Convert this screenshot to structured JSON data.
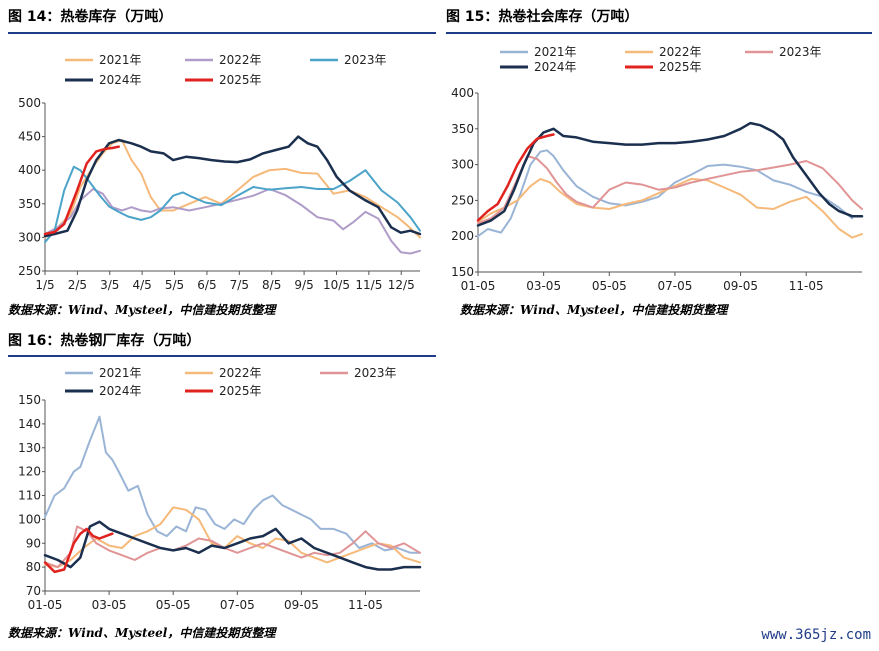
{
  "charts": [
    {
      "title": "图 14：热卷库存（万吨）",
      "source": "数据来源：Wind、Mysteel，中信建投期货整理",
      "legend": [
        "2021年",
        "2022年",
        "2023年",
        "2024年",
        "2025年"
      ]
    },
    {
      "title": "图 15：热卷社会库存（万吨）",
      "source": "数据来源：Wind、Mysteel，中信建投期货整理",
      "legend": [
        "2021年",
        "2022年",
        "2023年",
        "2024年",
        "2025年"
      ]
    },
    {
      "title": "图 16：热卷钢厂库存（万吨）",
      "source": "数据来源：Wind、Mysteel，中信建投期货整理",
      "legend": [
        "2021年",
        "2022年",
        "2023年",
        "2024年",
        "2025年"
      ]
    }
  ],
  "watermark": "www.365jz.com",
  "chart_data": [
    {
      "type": "line",
      "title": "图 14：热卷库存（万吨）",
      "x_ticks": [
        "1/5",
        "2/5",
        "3/5",
        "4/5",
        "5/5",
        "6/5",
        "7/5",
        "8/5",
        "9/5",
        "10/5",
        "11/5",
        "12/5"
      ],
      "xlim": [
        0,
        11.7
      ],
      "ylim": [
        250,
        500
      ],
      "y_ticks": [
        250,
        300,
        350,
        400,
        450,
        500
      ],
      "legend_position": "top",
      "series": [
        {
          "name": "2021年",
          "color": "#f5b97a",
          "width": 2,
          "x": [
            0,
            0.4,
            0.8,
            1.1,
            1.5,
            1.8,
            2.1,
            2.4,
            2.7,
            3.0,
            3.3,
            3.6,
            4.0,
            4.5,
            5.0,
            5.5,
            6.0,
            6.5,
            7.0,
            7.5,
            8.0,
            8.5,
            9.0,
            9.5,
            10.0,
            10.5,
            11.0,
            11.3,
            11.7
          ],
          "y": [
            300,
            315,
            335,
            375,
            405,
            425,
            440,
            445,
            415,
            395,
            360,
            340,
            340,
            350,
            360,
            350,
            370,
            390,
            400,
            402,
            396,
            395,
            365,
            370,
            360,
            345,
            330,
            318,
            300
          ]
        },
        {
          "name": "2022年",
          "color": "#b09cc8",
          "width": 2,
          "x": [
            0,
            0.4,
            0.8,
            1.1,
            1.5,
            1.8,
            2.1,
            2.4,
            2.7,
            3.0,
            3.3,
            3.6,
            4.0,
            4.5,
            5.0,
            5.5,
            6.0,
            6.5,
            7.0,
            7.5,
            8.0,
            8.5,
            9.0,
            9.3,
            9.6,
            10.0,
            10.4,
            10.8,
            11.1,
            11.4,
            11.7
          ],
          "y": [
            305,
            315,
            330,
            355,
            372,
            365,
            345,
            340,
            345,
            340,
            338,
            343,
            345,
            340,
            345,
            350,
            356,
            362,
            372,
            363,
            348,
            330,
            325,
            312,
            322,
            338,
            328,
            295,
            278,
            276,
            280
          ]
        },
        {
          "name": "2023年",
          "color": "#4ba3c9",
          "width": 2,
          "x": [
            0,
            0.3,
            0.6,
            0.9,
            1.1,
            1.4,
            1.7,
            2.0,
            2.3,
            2.6,
            3.0,
            3.3,
            3.6,
            4.0,
            4.3,
            4.6,
            5.0,
            5.5,
            6.0,
            6.5,
            7.0,
            7.5,
            8.0,
            8.5,
            9.0,
            9.5,
            10.0,
            10.5,
            11.0,
            11.4,
            11.7
          ],
          "y": [
            293,
            310,
            370,
            405,
            400,
            382,
            363,
            346,
            338,
            331,
            326,
            330,
            340,
            362,
            367,
            360,
            352,
            348,
            362,
            375,
            371,
            373,
            375,
            372,
            372,
            384,
            400,
            370,
            352,
            330,
            310
          ]
        },
        {
          "name": "2024年",
          "color": "#1b2f4e",
          "width": 2.5,
          "x": [
            0,
            0.3,
            0.7,
            1.0,
            1.3,
            1.6,
            2.0,
            2.3,
            2.7,
            3.0,
            3.3,
            3.7,
            4.0,
            4.4,
            4.8,
            5.2,
            5.6,
            6.0,
            6.4,
            6.8,
            7.2,
            7.6,
            7.9,
            8.2,
            8.5,
            8.8,
            9.1,
            9.5,
            10.0,
            10.4,
            10.8,
            11.1,
            11.4,
            11.7
          ],
          "y": [
            302,
            305,
            310,
            340,
            385,
            415,
            440,
            445,
            440,
            435,
            428,
            425,
            415,
            420,
            418,
            415,
            413,
            412,
            416,
            425,
            430,
            435,
            450,
            440,
            435,
            415,
            390,
            370,
            355,
            345,
            315,
            307,
            310,
            305
          ]
        },
        {
          "name": "2025年",
          "color": "#e1231f",
          "width": 2.5,
          "x": [
            0,
            0.3,
            0.6,
            1.0,
            1.3,
            1.6,
            1.9,
            2.1,
            2.3
          ],
          "y": [
            305,
            308,
            320,
            370,
            410,
            428,
            432,
            433,
            435
          ]
        }
      ]
    },
    {
      "type": "line",
      "title": "图 15：热卷社会库存（万吨）",
      "x_ticks": [
        "01-05",
        "03-05",
        "05-05",
        "07-05",
        "09-05",
        "11-05"
      ],
      "xlim": [
        0,
        11.7
      ],
      "ylim": [
        150,
        400
      ],
      "y_ticks": [
        150,
        200,
        250,
        300,
        350,
        400
      ],
      "legend_position": "top",
      "series": [
        {
          "name": "2021年",
          "color": "#9ab4d6",
          "width": 2,
          "x": [
            0,
            0.3,
            0.7,
            1.0,
            1.3,
            1.6,
            1.9,
            2.1,
            2.3,
            2.6,
            3.0,
            3.5,
            4.0,
            4.5,
            5.0,
            5.5,
            6.0,
            6.5,
            7.0,
            7.5,
            8.0,
            8.5,
            9.0,
            9.5,
            10.0,
            10.5,
            11.0,
            11.4
          ],
          "y": [
            200,
            210,
            205,
            225,
            260,
            300,
            318,
            320,
            312,
            292,
            270,
            255,
            246,
            243,
            248,
            255,
            275,
            286,
            298,
            300,
            297,
            292,
            278,
            272,
            262,
            255,
            240,
            225
          ]
        },
        {
          "name": "2022年",
          "color": "#f5b97a",
          "width": 2,
          "x": [
            0,
            0.4,
            0.8,
            1.2,
            1.6,
            1.9,
            2.2,
            2.5,
            3.0,
            3.5,
            4.0,
            4.5,
            5.0,
            5.5,
            6.0,
            6.5,
            7.0,
            7.5,
            8.0,
            8.5,
            9.0,
            9.5,
            10.0,
            10.5,
            11.0,
            11.4,
            11.7
          ],
          "y": [
            220,
            232,
            240,
            250,
            270,
            280,
            275,
            262,
            245,
            240,
            238,
            245,
            250,
            260,
            270,
            280,
            278,
            268,
            258,
            240,
            238,
            248,
            255,
            235,
            210,
            198,
            203
          ]
        },
        {
          "name": "2023年",
          "color": "#e09495",
          "width": 2,
          "x": [
            0,
            0.4,
            0.8,
            1.2,
            1.5,
            1.8,
            2.1,
            2.4,
            2.7,
            3.0,
            3.5,
            4.0,
            4.5,
            5.0,
            5.5,
            6.0,
            6.5,
            7.0,
            7.5,
            8.0,
            8.5,
            9.0,
            9.5,
            10.0,
            10.5,
            11.0,
            11.4,
            11.7
          ],
          "y": [
            218,
            225,
            240,
            280,
            312,
            308,
            295,
            275,
            258,
            248,
            240,
            265,
            275,
            272,
            265,
            268,
            275,
            280,
            285,
            290,
            292,
            296,
            300,
            305,
            295,
            272,
            250,
            238
          ]
        },
        {
          "name": "2024年",
          "color": "#1b2f4e",
          "width": 2.5,
          "x": [
            0,
            0.4,
            0.8,
            1.1,
            1.4,
            1.7,
            2.0,
            2.3,
            2.6,
            3.0,
            3.5,
            4.0,
            4.5,
            5.0,
            5.5,
            6.0,
            6.5,
            7.0,
            7.5,
            8.0,
            8.3,
            8.6,
            9.0,
            9.3,
            9.6,
            10.0,
            10.4,
            10.7,
            11.0,
            11.4,
            11.7
          ],
          "y": [
            215,
            222,
            235,
            265,
            300,
            330,
            345,
            350,
            340,
            338,
            332,
            330,
            328,
            328,
            330,
            330,
            332,
            335,
            340,
            350,
            358,
            355,
            346,
            335,
            310,
            285,
            260,
            245,
            235,
            228,
            228
          ]
        },
        {
          "name": "2025年",
          "color": "#e1231f",
          "width": 2.5,
          "x": [
            0,
            0.3,
            0.6,
            0.9,
            1.2,
            1.5,
            1.8,
            2.1,
            2.3
          ],
          "y": [
            222,
            235,
            245,
            270,
            300,
            322,
            336,
            340,
            342
          ]
        }
      ]
    },
    {
      "type": "line",
      "title": "图 16：热卷钢厂库存（万吨）",
      "x_ticks": [
        "01-05",
        "03-05",
        "05-05",
        "07-05",
        "09-05",
        "11-05"
      ],
      "xlim": [
        0,
        11.7
      ],
      "ylim": [
        70,
        150
      ],
      "y_ticks": [
        70,
        80,
        90,
        100,
        110,
        120,
        130,
        140,
        150
      ],
      "legend_position": "top",
      "series": [
        {
          "name": "2021年",
          "color": "#9ab4d6",
          "width": 2,
          "x": [
            0,
            0.3,
            0.6,
            0.9,
            1.1,
            1.4,
            1.7,
            1.9,
            2.1,
            2.3,
            2.6,
            2.9,
            3.2,
            3.5,
            3.8,
            4.1,
            4.4,
            4.7,
            5.0,
            5.3,
            5.6,
            5.9,
            6.2,
            6.5,
            6.8,
            7.1,
            7.4,
            7.7,
            8.0,
            8.3,
            8.6,
            9.0,
            9.4,
            9.8,
            10.2,
            10.6,
            11.0,
            11.4,
            11.7
          ],
          "y": [
            101,
            110,
            113,
            120,
            122,
            133,
            143,
            128,
            125,
            120,
            112,
            114,
            102,
            95,
            93,
            97,
            95,
            105,
            104,
            98,
            96,
            100,
            98,
            104,
            108,
            110,
            106,
            104,
            102,
            100,
            96,
            96,
            94,
            88,
            90,
            87,
            88,
            86,
            86
          ]
        },
        {
          "name": "2022年",
          "color": "#f5b97a",
          "width": 2,
          "x": [
            0,
            0.4,
            0.8,
            1.2,
            1.6,
            2.0,
            2.4,
            2.8,
            3.2,
            3.6,
            4.0,
            4.4,
            4.8,
            5.2,
            5.6,
            6.0,
            6.4,
            6.8,
            7.2,
            7.6,
            8.0,
            8.4,
            8.8,
            9.2,
            9.6,
            10.0,
            10.4,
            10.8,
            11.2,
            11.7
          ],
          "y": [
            81,
            80,
            83,
            88,
            92,
            89,
            88,
            93,
            95,
            98,
            105,
            104,
            100,
            90,
            88,
            93,
            90,
            88,
            92,
            91,
            86,
            84,
            82,
            84,
            86,
            88,
            90,
            89,
            84,
            82
          ]
        },
        {
          "name": "2023年",
          "color": "#e09495",
          "width": 2,
          "x": [
            0,
            0.4,
            0.8,
            1.0,
            1.3,
            1.6,
            2.0,
            2.4,
            2.8,
            3.2,
            3.6,
            4.0,
            4.4,
            4.8,
            5.2,
            5.6,
            6.0,
            6.4,
            6.8,
            7.2,
            7.6,
            8.0,
            8.4,
            8.8,
            9.2,
            9.6,
            10.0,
            10.4,
            10.8,
            11.2,
            11.7
          ],
          "y": [
            82,
            80,
            86,
            97,
            95,
            90,
            87,
            85,
            83,
            86,
            88,
            87,
            89,
            92,
            91,
            88,
            86,
            88,
            90,
            88,
            86,
            84,
            86,
            85,
            86,
            90,
            95,
            90,
            88,
            90,
            86
          ]
        },
        {
          "name": "2024年",
          "color": "#1b2f4e",
          "width": 2.5,
          "x": [
            0,
            0.4,
            0.8,
            1.1,
            1.4,
            1.7,
            2.0,
            2.4,
            2.8,
            3.2,
            3.6,
            4.0,
            4.4,
            4.8,
            5.2,
            5.6,
            6.0,
            6.4,
            6.8,
            7.2,
            7.6,
            8.0,
            8.4,
            8.8,
            9.2,
            9.6,
            10.0,
            10.4,
            10.8,
            11.2,
            11.7
          ],
          "y": [
            85,
            83,
            80,
            84,
            97,
            99,
            96,
            94,
            92,
            90,
            88,
            87,
            88,
            86,
            89,
            88,
            90,
            92,
            93,
            96,
            90,
            92,
            88,
            86,
            84,
            82,
            80,
            79,
            79,
            80,
            80
          ]
        },
        {
          "name": "2025年",
          "color": "#e1231f",
          "width": 2.5,
          "x": [
            0,
            0.3,
            0.6,
            0.9,
            1.1,
            1.3,
            1.5,
            1.7,
            1.9,
            2.1
          ],
          "y": [
            82,
            78,
            79,
            90,
            94,
            96,
            93,
            92,
            93,
            94
          ]
        }
      ]
    }
  ]
}
